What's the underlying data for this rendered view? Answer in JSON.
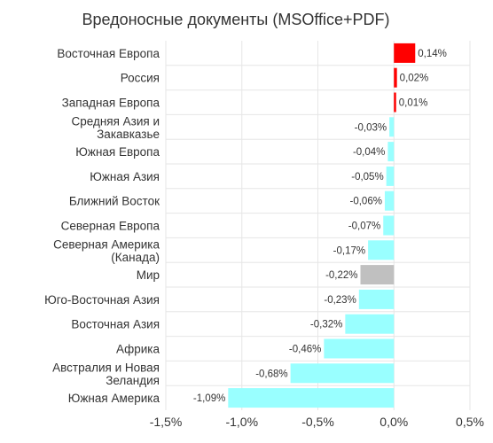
{
  "chart_data": {
    "type": "bar",
    "orientation": "horizontal",
    "title": "Вредоносные документы (MSOffice+PDF)",
    "categories": [
      [
        "Восточная Европа"
      ],
      [
        "Россия"
      ],
      [
        "Западная Европа"
      ],
      [
        "Средняя Азия и",
        "Закавказье"
      ],
      [
        "Южная Европа"
      ],
      [
        "Южная Азия"
      ],
      [
        "Ближний Восток"
      ],
      [
        "Северная Европа"
      ],
      [
        "Северная Америка",
        "(Канада)"
      ],
      [
        "Мир"
      ],
      [
        "Юго-Восточная Азия"
      ],
      [
        "Восточная Азия"
      ],
      [
        "Африка"
      ],
      [
        "Австралия и Новая",
        "Зеландия"
      ],
      [
        "Южная Америка"
      ]
    ],
    "values": [
      0.14,
      0.02,
      0.01,
      -0.03,
      -0.04,
      -0.05,
      -0.06,
      -0.07,
      -0.17,
      -0.22,
      -0.23,
      -0.32,
      -0.46,
      -0.68,
      -1.09
    ],
    "data_labels": [
      "0,14%",
      "0,02%",
      "0,01%",
      "-0,03%",
      "-0,04%",
      "-0,05%",
      "-0,06%",
      "-0,07%",
      "-0,17%",
      "-0,22%",
      "-0,23%",
      "-0,32%",
      "-0,46%",
      "-0,68%",
      "-1,09%"
    ],
    "xlim": [
      -1.5,
      0.5
    ],
    "xticks": [
      -1.5,
      -1.0,
      -0.5,
      0.0,
      0.5
    ],
    "xtick_labels": [
      "-1,5%",
      "-1,0%",
      "-0,5%",
      "0,0%",
      "0,5%"
    ],
    "grid": true,
    "colors": {
      "positive": "#ff0000",
      "negative": "#99ffff",
      "world": "#c0c0c0",
      "grid": "#e6e6e6",
      "text": "#333333"
    },
    "highlight_index": 9
  }
}
